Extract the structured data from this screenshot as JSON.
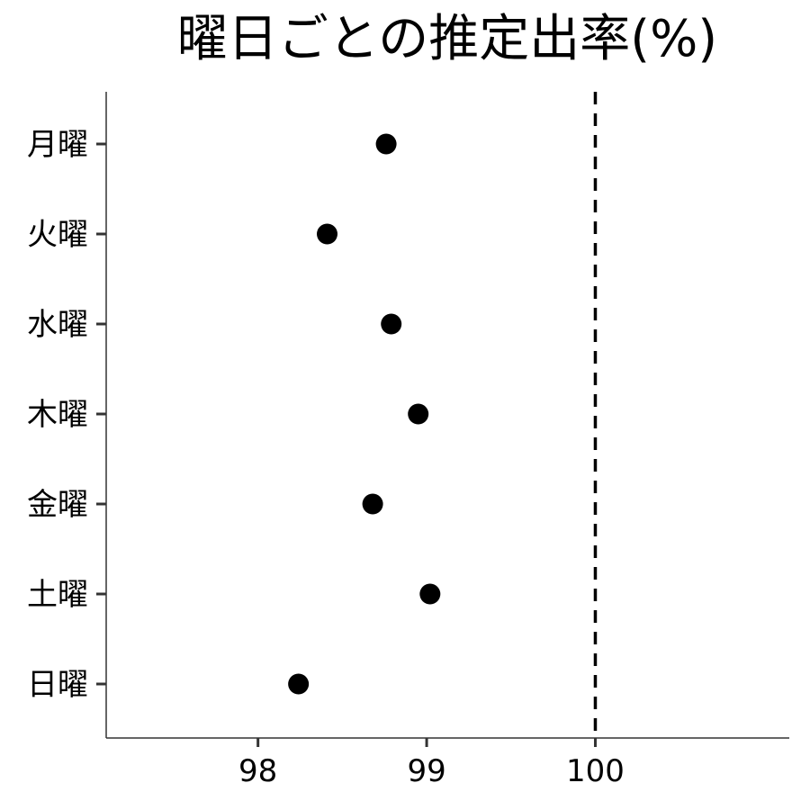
{
  "chart_data": {
    "type": "scatter",
    "title": "曜日ごとの推定出率(%)",
    "xlabel": "",
    "ylabel": "",
    "categories": [
      "月曜",
      "火曜",
      "水曜",
      "木曜",
      "金曜",
      "土曜",
      "日曜"
    ],
    "values": [
      98.76,
      98.41,
      98.79,
      98.95,
      98.68,
      99.02,
      98.24
    ],
    "xlim": [
      97.1,
      101.15
    ],
    "xticks": [
      98,
      99,
      100
    ],
    "xtick_labels": [
      "98",
      "99",
      "100"
    ],
    "reference_line": {
      "x": 100,
      "style": "dashed"
    },
    "grid": false,
    "colors": {
      "point": "#000000",
      "axis": "#333333",
      "reference": "#000000"
    }
  }
}
